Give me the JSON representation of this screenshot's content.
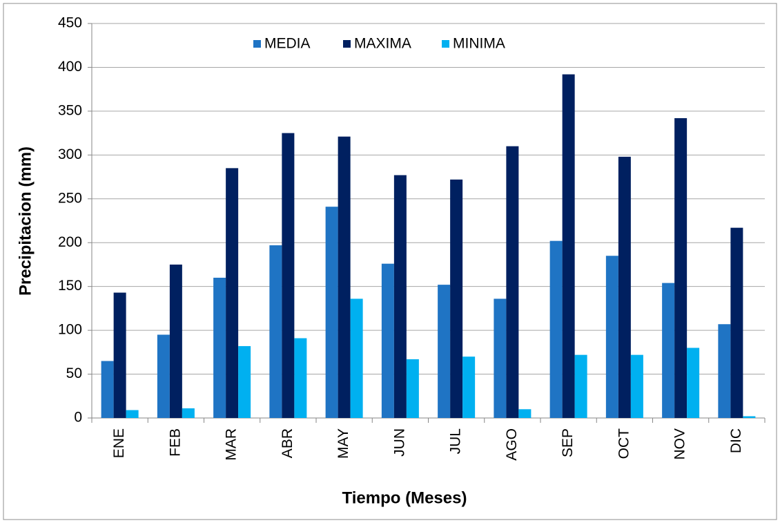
{
  "chart_data": {
    "type": "bar",
    "y_label": "Precipitacion (mm)",
    "x_label": "Tiempo (Meses)",
    "categories": [
      "ENE",
      "FEB",
      "MAR",
      "ABR",
      "MAY",
      "JUN",
      "JUL",
      "AGO",
      "SEP",
      "OCT",
      "NOV",
      "DIC"
    ],
    "series": [
      {
        "name": "MEDIA",
        "color": "#1f74c4",
        "values": [
          65,
          95,
          160,
          197,
          241,
          176,
          152,
          136,
          202,
          185,
          154,
          107
        ]
      },
      {
        "name": "MAXIMA",
        "color": "#002060",
        "values": [
          143,
          175,
          285,
          325,
          321,
          277,
          272,
          310,
          392,
          298,
          342,
          217
        ]
      },
      {
        "name": "MINIMA",
        "color": "#00b0f0",
        "values": [
          9,
          11,
          82,
          91,
          136,
          67,
          70,
          10,
          72,
          72,
          80,
          2
        ]
      }
    ],
    "ylim": [
      0,
      450
    ],
    "yticks": [
      0,
      50,
      100,
      150,
      200,
      250,
      300,
      350,
      400,
      450
    ],
    "grid": true,
    "legend": "top"
  }
}
